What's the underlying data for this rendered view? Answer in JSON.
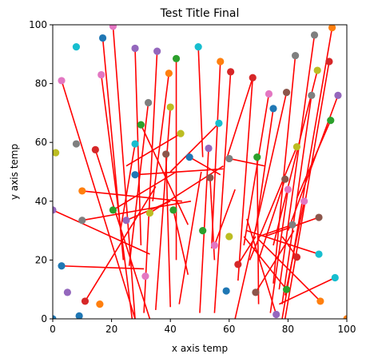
{
  "chart_data": {
    "type": "scatter",
    "title": "Test Title Final",
    "xlabel": "x axis temp",
    "ylabel": "y axis temp",
    "xlim": [
      0,
      100
    ],
    "ylim": [
      0,
      100
    ],
    "xticks": [
      0,
      20,
      40,
      60,
      80,
      100
    ],
    "yticks": [
      0,
      20,
      40,
      60,
      80,
      100
    ],
    "grid": false,
    "line_color": "#ff0000",
    "palette": [
      "#1f77b4",
      "#ff7f0e",
      "#2ca02c",
      "#d62728",
      "#9467bd",
      "#8c564b",
      "#e377c2",
      "#7f7f7f",
      "#bcbd22",
      "#17becf"
    ],
    "points": [
      {
        "x": 0,
        "y": 0,
        "c": 0
      },
      {
        "x": 0,
        "y": 37,
        "c": 4
      },
      {
        "x": 1,
        "y": 56.5,
        "c": 8
      },
      {
        "x": 3,
        "y": 81,
        "c": 6
      },
      {
        "x": 3,
        "y": 18,
        "c": 0
      },
      {
        "x": 5,
        "y": 9,
        "c": 4
      },
      {
        "x": 8,
        "y": 92.5,
        "c": 9
      },
      {
        "x": 9,
        "y": 1,
        "c": 0
      },
      {
        "x": 8,
        "y": 59.5,
        "c": 7
      },
      {
        "x": 10,
        "y": 43.5,
        "c": 1
      },
      {
        "x": 10,
        "y": 33.5,
        "c": 7
      },
      {
        "x": 11,
        "y": 6,
        "c": 3
      },
      {
        "x": 14.5,
        "y": 57.5,
        "c": 3
      },
      {
        "x": 16,
        "y": 5,
        "c": 1
      },
      {
        "x": 17,
        "y": 95.5,
        "c": 0
      },
      {
        "x": 16.5,
        "y": 83,
        "c": 6
      },
      {
        "x": 20.5,
        "y": 99.5,
        "c": 6
      },
      {
        "x": 20.5,
        "y": 37,
        "c": 2
      },
      {
        "x": 25,
        "y": 33.5,
        "c": 4
      },
      {
        "x": 28,
        "y": 92,
        "c": 4
      },
      {
        "x": 28,
        "y": 59.5,
        "c": 9
      },
      {
        "x": 28,
        "y": 49,
        "c": 0
      },
      {
        "x": 30,
        "y": 66,
        "c": 2
      },
      {
        "x": 31.5,
        "y": 14.5,
        "c": 6
      },
      {
        "x": 32.5,
        "y": 73.5,
        "c": 7
      },
      {
        "x": 33,
        "y": 36,
        "c": 8
      },
      {
        "x": 35.5,
        "y": 91,
        "c": 4
      },
      {
        "x": 38.5,
        "y": 56,
        "c": 5
      },
      {
        "x": 39.5,
        "y": 83.5,
        "c": 1
      },
      {
        "x": 40,
        "y": 72,
        "c": 8
      },
      {
        "x": 41,
        "y": 37,
        "c": 2
      },
      {
        "x": 42,
        "y": 88.5,
        "c": 2
      },
      {
        "x": 43.5,
        "y": 63,
        "c": 8
      },
      {
        "x": 46.5,
        "y": 55,
        "c": 0
      },
      {
        "x": 49.5,
        "y": 92.5,
        "c": 9
      },
      {
        "x": 51,
        "y": 30,
        "c": 2
      },
      {
        "x": 53,
        "y": 58,
        "c": 4
      },
      {
        "x": 53.5,
        "y": 48,
        "c": 5
      },
      {
        "x": 55,
        "y": 25,
        "c": 6
      },
      {
        "x": 56.5,
        "y": 66.5,
        "c": 9
      },
      {
        "x": 57,
        "y": 87.5,
        "c": 1
      },
      {
        "x": 59,
        "y": 9.5,
        "c": 0
      },
      {
        "x": 60,
        "y": 28,
        "c": 8
      },
      {
        "x": 60,
        "y": 54.5,
        "c": 7
      },
      {
        "x": 60.5,
        "y": 84,
        "c": 3
      },
      {
        "x": 63,
        "y": 18.5,
        "c": 3
      },
      {
        "x": 68,
        "y": 82,
        "c": 3
      },
      {
        "x": 69,
        "y": 9,
        "c": 5
      },
      {
        "x": 69.5,
        "y": 55,
        "c": 2
      },
      {
        "x": 73.5,
        "y": 76.5,
        "c": 6
      },
      {
        "x": 75,
        "y": 71.5,
        "c": 0
      },
      {
        "x": 76,
        "y": 1.5,
        "c": 4
      },
      {
        "x": 79,
        "y": 47.5,
        "c": 5
      },
      {
        "x": 79.5,
        "y": 77,
        "c": 5
      },
      {
        "x": 79.5,
        "y": 10,
        "c": 2
      },
      {
        "x": 80,
        "y": 44,
        "c": 6
      },
      {
        "x": 81.5,
        "y": 32,
        "c": 7
      },
      {
        "x": 82.5,
        "y": 89.5,
        "c": 7
      },
      {
        "x": 83,
        "y": 21,
        "c": 3
      },
      {
        "x": 83,
        "y": 58.5,
        "c": 8
      },
      {
        "x": 85.5,
        "y": 40,
        "c": 6
      },
      {
        "x": 88,
        "y": 76,
        "c": 7
      },
      {
        "x": 89,
        "y": 96.5,
        "c": 7
      },
      {
        "x": 90,
        "y": 84.5,
        "c": 8
      },
      {
        "x": 90.5,
        "y": 34.5,
        "c": 5
      },
      {
        "x": 90.5,
        "y": 22,
        "c": 9
      },
      {
        "x": 91,
        "y": 6,
        "c": 1
      },
      {
        "x": 94,
        "y": 87.5,
        "c": 3
      },
      {
        "x": 94.5,
        "y": 67.5,
        "c": 2
      },
      {
        "x": 95,
        "y": 99,
        "c": 1
      },
      {
        "x": 96,
        "y": 14,
        "c": 9
      },
      {
        "x": 97,
        "y": 76,
        "c": 4
      },
      {
        "x": 100,
        "y": 0,
        "c": 1
      }
    ],
    "segments": [
      [
        3,
        81,
        28,
        0
      ],
      [
        3,
        18,
        31,
        17
      ],
      [
        0,
        37,
        33,
        22
      ],
      [
        10,
        43.5,
        44,
        40
      ],
      [
        10,
        33.5,
        47,
        40
      ],
      [
        11,
        6,
        35,
        45
      ],
      [
        14.5,
        57.5,
        33,
        0
      ],
      [
        16.5,
        83,
        27,
        0
      ],
      [
        17,
        95.5,
        24,
        20
      ],
      [
        20.5,
        99.5,
        28,
        0
      ],
      [
        20.5,
        37,
        42,
        50
      ],
      [
        25,
        33.5,
        40,
        40
      ],
      [
        28,
        92,
        30,
        25
      ],
      [
        28,
        59.5,
        23,
        30
      ],
      [
        28,
        49,
        58,
        51
      ],
      [
        30,
        66,
        46,
        32
      ],
      [
        32.5,
        73.5,
        26,
        18
      ],
      [
        33,
        36,
        58,
        52
      ],
      [
        35.5,
        91,
        31,
        2
      ],
      [
        38.5,
        56,
        40,
        4
      ],
      [
        39.5,
        83.5,
        34,
        40
      ],
      [
        40,
        72,
        35,
        3
      ],
      [
        41,
        37,
        46,
        15
      ],
      [
        42,
        88.5,
        42,
        20
      ],
      [
        43.5,
        63,
        25,
        52
      ],
      [
        46.5,
        55,
        57,
        49
      ],
      [
        49.5,
        92.5,
        51,
        55
      ],
      [
        50.5,
        50,
        43,
        5
      ],
      [
        53,
        58,
        50,
        2
      ],
      [
        53.5,
        48,
        55,
        20
      ],
      [
        55,
        25,
        62,
        44
      ],
      [
        56.5,
        66.5,
        40,
        50
      ],
      [
        57,
        87.5,
        54,
        24
      ],
      [
        60,
        54.5,
        72,
        52
      ],
      [
        60.5,
        84,
        55,
        2
      ],
      [
        63,
        18.5,
        69,
        28
      ],
      [
        68,
        82,
        59,
        54
      ],
      [
        68,
        82,
        63,
        13
      ],
      [
        69,
        9,
        82,
        30
      ],
      [
        69.5,
        55,
        70,
        5
      ],
      [
        73.5,
        76.5,
        65,
        25
      ],
      [
        75,
        71.5,
        69,
        30
      ],
      [
        76,
        1.5,
        66,
        34
      ],
      [
        79,
        47.5,
        70,
        20
      ],
      [
        79.5,
        77,
        62,
        0
      ],
      [
        79.5,
        10,
        65,
        28
      ],
      [
        80,
        44,
        74,
        2
      ],
      [
        81.5,
        32,
        70,
        28
      ],
      [
        82.5,
        89.5,
        75,
        12
      ],
      [
        83,
        21,
        78,
        28
      ],
      [
        83,
        58.5,
        67,
        20
      ],
      [
        85.5,
        40,
        79,
        8
      ],
      [
        88,
        76,
        78,
        5
      ],
      [
        89,
        96.5,
        77,
        10
      ],
      [
        90,
        84.5,
        75,
        25
      ],
      [
        90.5,
        34.5,
        72,
        28
      ],
      [
        90.5,
        22,
        66,
        30
      ],
      [
        91,
        6,
        70,
        27
      ],
      [
        94,
        87.5,
        79,
        0
      ],
      [
        94.5,
        67.5,
        83,
        41
      ],
      [
        95,
        99,
        78,
        0
      ],
      [
        96,
        14,
        77,
        5
      ],
      [
        97,
        76,
        80,
        30
      ]
    ]
  }
}
